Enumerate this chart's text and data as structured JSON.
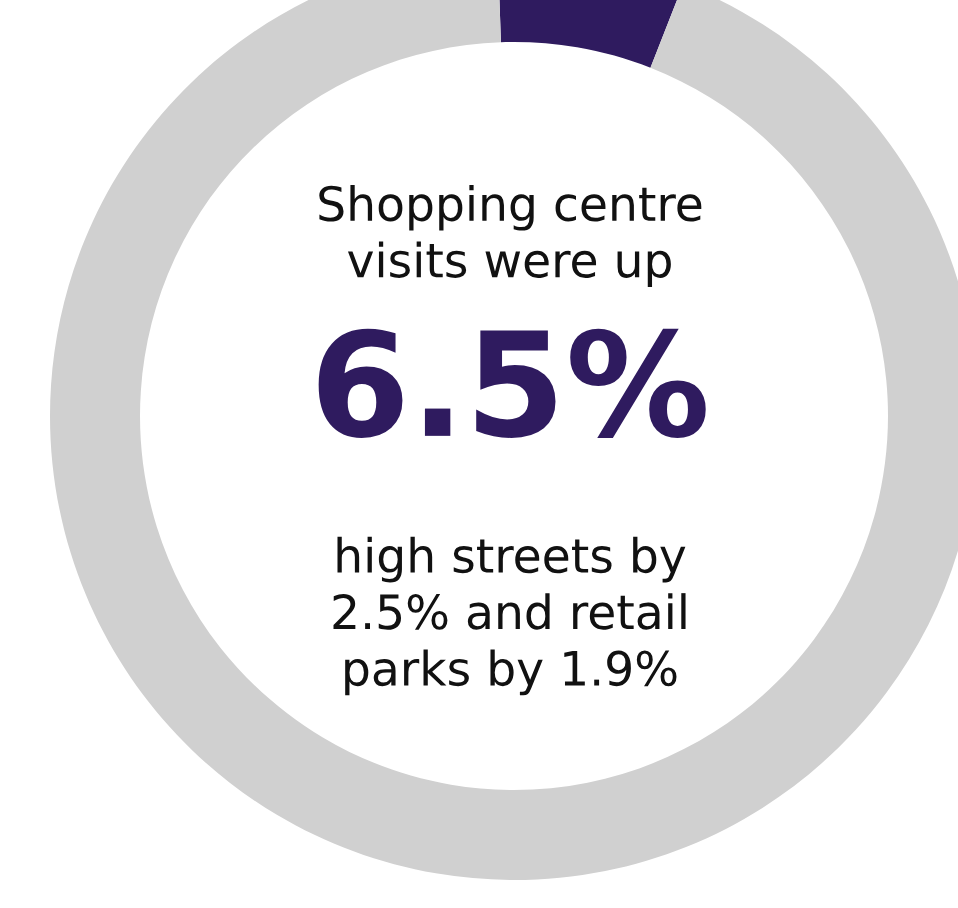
{
  "chart_data": {
    "type": "donut",
    "categories": [
      null,
      null
    ],
    "values": [
      6.5,
      93.5
    ],
    "colors": [
      "#2f1b5f",
      "#d0d0d0"
    ],
    "annotations": [
      "Shopping centre\nvisits were up",
      "6.5%",
      "high streets by\n2.5% and retail\nparks by 1.9%"
    ]
  }
}
